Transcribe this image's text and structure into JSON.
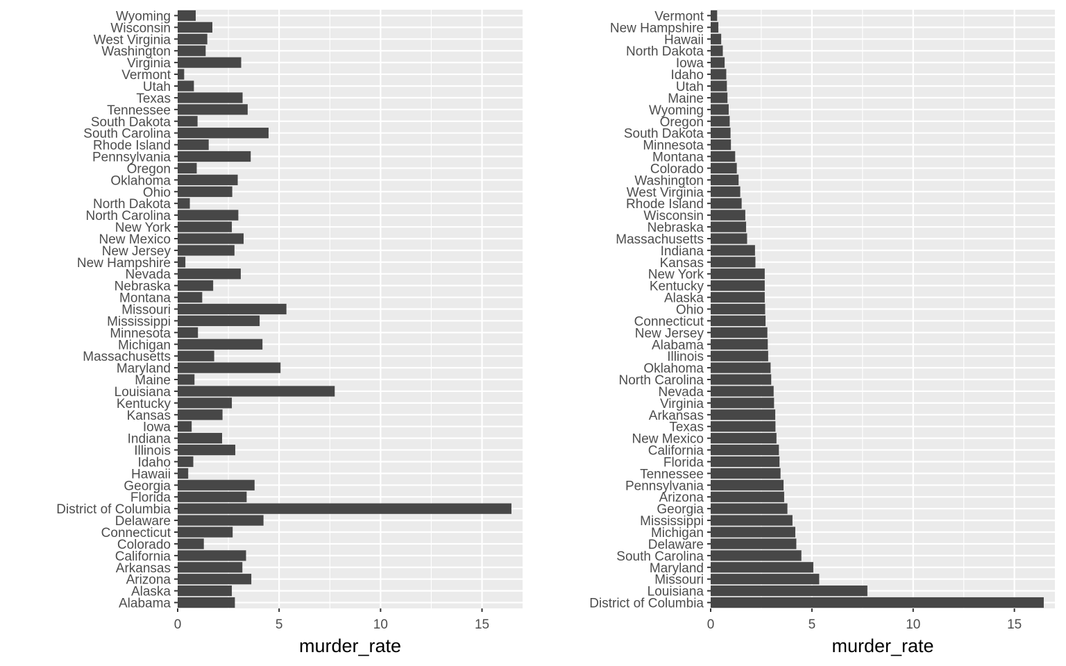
{
  "chart_data": [
    {
      "type": "bar",
      "orientation": "horizontal",
      "order": "alphabetical",
      "xlabel": "murder_rate",
      "ylabel": "",
      "xlim": [
        0,
        17
      ],
      "x_ticks": [
        0,
        5,
        10,
        15
      ],
      "grid": true,
      "bar_color": "#474747",
      "panel_color": "#ebebeb",
      "categories": [
        "Alabama",
        "Alaska",
        "Arizona",
        "Arkansas",
        "California",
        "Colorado",
        "Connecticut",
        "Delaware",
        "District of Columbia",
        "Florida",
        "Georgia",
        "Hawaii",
        "Idaho",
        "Illinois",
        "Indiana",
        "Iowa",
        "Kansas",
        "Kentucky",
        "Louisiana",
        "Maine",
        "Maryland",
        "Massachusetts",
        "Michigan",
        "Minnesota",
        "Mississippi",
        "Missouri",
        "Montana",
        "Nebraska",
        "Nevada",
        "New Hampshire",
        "New Jersey",
        "New Mexico",
        "New York",
        "North Carolina",
        "North Dakota",
        "Ohio",
        "Oklahoma",
        "Oregon",
        "Pennsylvania",
        "Rhode Island",
        "South Carolina",
        "South Dakota",
        "Tennessee",
        "Texas",
        "Utah",
        "Vermont",
        "Virginia",
        "Washington",
        "West Virginia",
        "Wisconsin",
        "Wyoming"
      ],
      "values": [
        2.82,
        2.67,
        3.63,
        3.19,
        3.37,
        1.29,
        2.71,
        4.23,
        16.45,
        3.4,
        3.79,
        0.52,
        0.77,
        2.84,
        2.19,
        0.69,
        2.21,
        2.67,
        7.74,
        0.83,
        5.07,
        1.8,
        4.18,
        1.0,
        4.04,
        5.36,
        1.21,
        1.75,
        3.11,
        0.38,
        2.8,
        3.25,
        2.67,
        2.99,
        0.6,
        2.69,
        2.96,
        0.94,
        3.6,
        1.53,
        4.48,
        0.98,
        3.45,
        3.2,
        0.8,
        0.32,
        3.13,
        1.38,
        1.46,
        1.71,
        0.89
      ]
    },
    {
      "type": "bar",
      "orientation": "horizontal",
      "order": "by value, descending",
      "xlabel": "murder_rate",
      "ylabel": "",
      "xlim": [
        0,
        17
      ],
      "x_ticks": [
        0,
        5,
        10,
        15
      ],
      "grid": true,
      "bar_color": "#474747",
      "panel_color": "#ebebeb",
      "categories": [
        "District of Columbia",
        "Louisiana",
        "Missouri",
        "Maryland",
        "South Carolina",
        "Delaware",
        "Michigan",
        "Mississippi",
        "Georgia",
        "Arizona",
        "Pennsylvania",
        "Tennessee",
        "Florida",
        "California",
        "New Mexico",
        "Texas",
        "Arkansas",
        "Virginia",
        "Nevada",
        "North Carolina",
        "Oklahoma",
        "Illinois",
        "Alabama",
        "New Jersey",
        "Connecticut",
        "Ohio",
        "Alaska",
        "Kentucky",
        "New York",
        "Kansas",
        "Indiana",
        "Massachusetts",
        "Nebraska",
        "Wisconsin",
        "Rhode Island",
        "West Virginia",
        "Washington",
        "Colorado",
        "Montana",
        "Minnesota",
        "South Dakota",
        "Oregon",
        "Wyoming",
        "Maine",
        "Utah",
        "Idaho",
        "Iowa",
        "North Dakota",
        "Hawaii",
        "New Hampshire",
        "Vermont"
      ],
      "values": [
        16.45,
        7.74,
        5.36,
        5.07,
        4.48,
        4.23,
        4.18,
        4.04,
        3.79,
        3.63,
        3.6,
        3.45,
        3.4,
        3.37,
        3.25,
        3.2,
        3.19,
        3.13,
        3.11,
        2.99,
        2.96,
        2.84,
        2.82,
        2.8,
        2.71,
        2.69,
        2.67,
        2.67,
        2.67,
        2.21,
        2.19,
        1.8,
        1.75,
        1.71,
        1.53,
        1.46,
        1.38,
        1.29,
        1.21,
        1.0,
        0.98,
        0.94,
        0.89,
        0.83,
        0.8,
        0.77,
        0.69,
        0.6,
        0.52,
        0.38,
        0.32
      ]
    }
  ]
}
